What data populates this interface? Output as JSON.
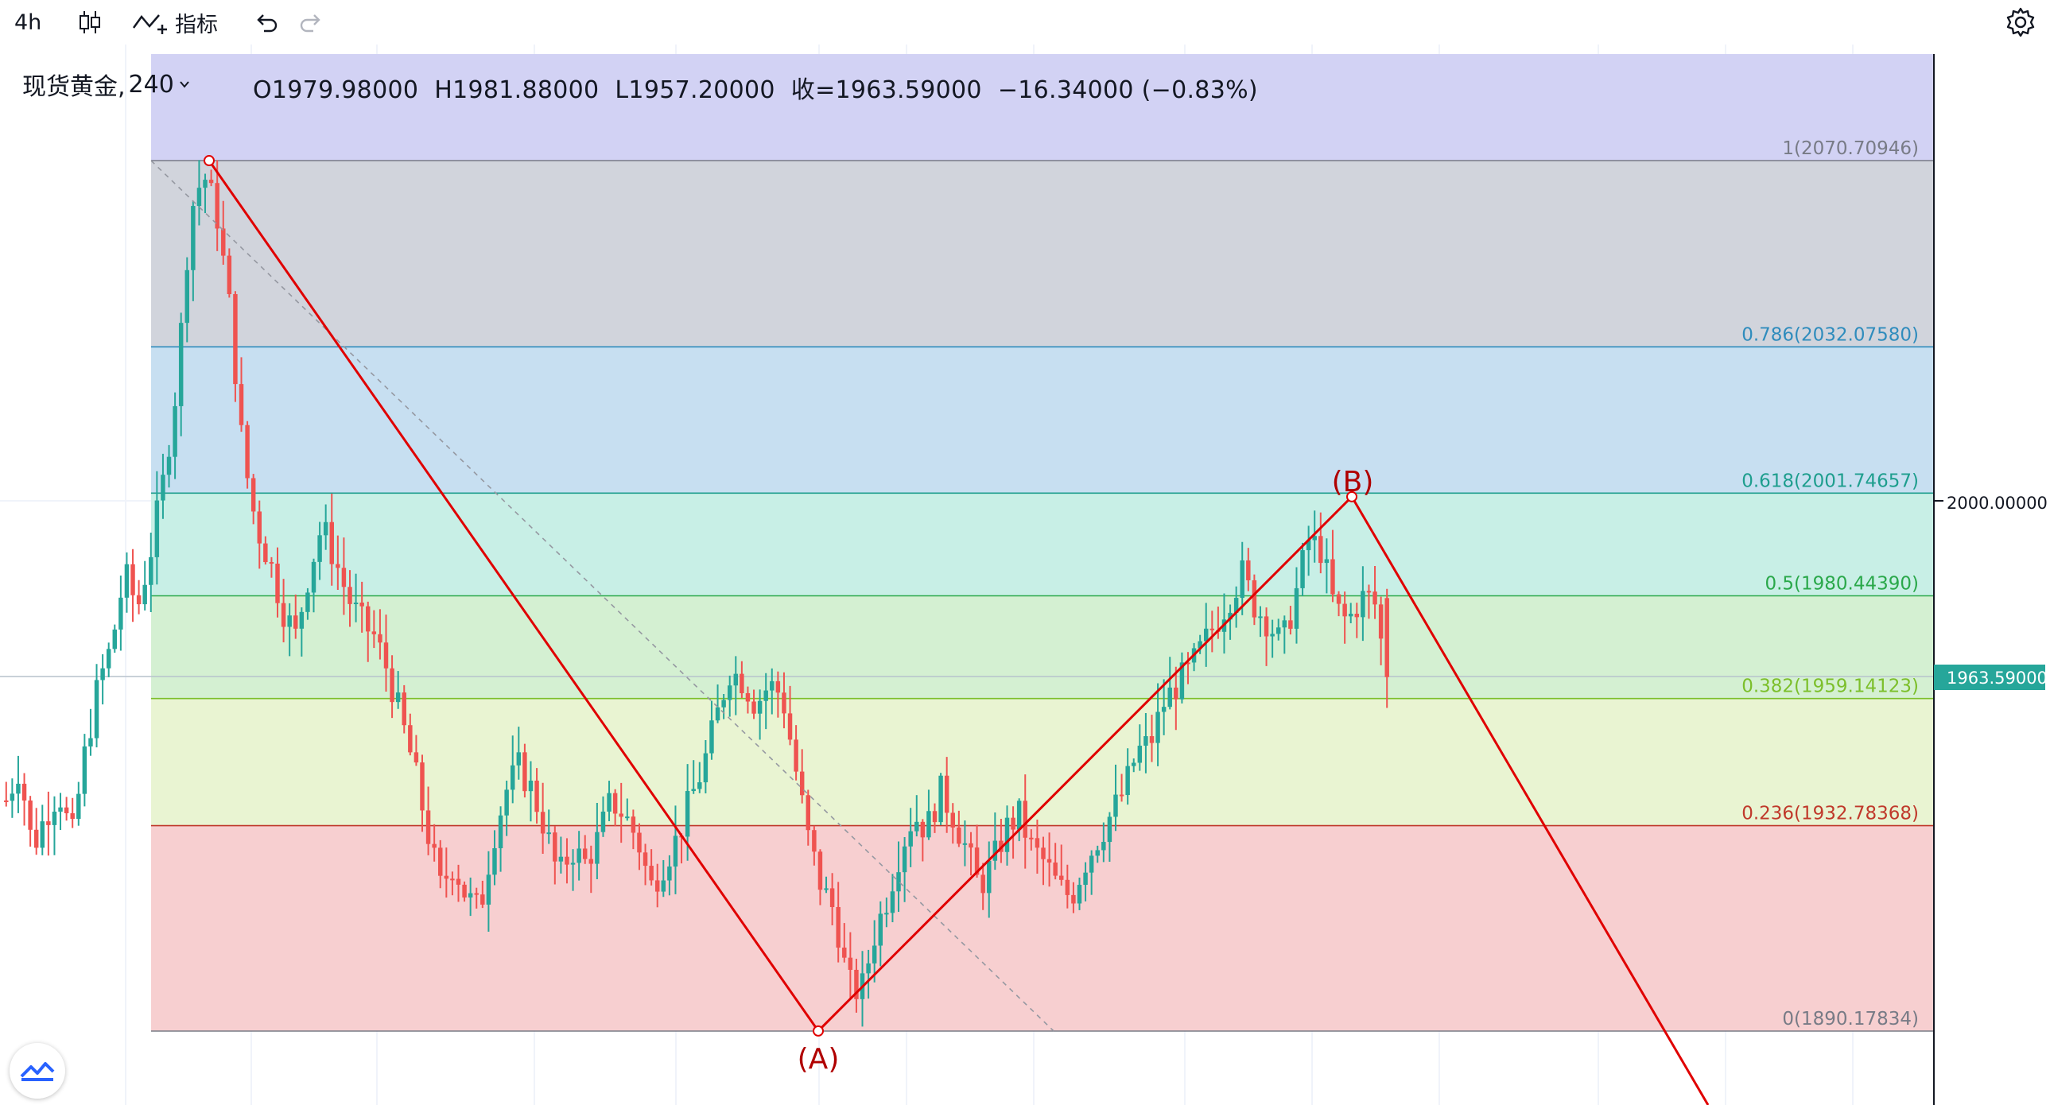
{
  "toolbar": {
    "interval": "4h",
    "indicators_label": "指标"
  },
  "legend": {
    "symbol": "现货黄金,",
    "interval": "240",
    "open": "O1979.98000",
    "high": "H1981.88000",
    "low": "L1957.20000",
    "close": "收=1963.59000",
    "change": "−16.34000 (−0.83%)"
  },
  "price_axis": {
    "tick": "2000.00000",
    "last_price": "1963.59000",
    "last_price_color": "#26a69a"
  },
  "colors": {
    "up": "#26a69a",
    "down": "#ef5350",
    "wave_line": "#e00000",
    "wave_label": "#b00000"
  },
  "chart_data": {
    "type": "candlestick",
    "instrument": "现货黄金",
    "timeframe": "240",
    "y_axis_ticks": [
      2000
    ],
    "last_price": 1963.59,
    "fibonacci": [
      {
        "ratio": "1",
        "price": 2070.70946,
        "label": "1(2070.70946)",
        "color": "#787b86",
        "fill": "#d1d4dc"
      },
      {
        "ratio": "0.786",
        "price": 2032.0758,
        "label": "0.786(2032.07580)",
        "color": "#2f8cbd",
        "fill": "#c7dff1"
      },
      {
        "ratio": "0.618",
        "price": 2001.74657,
        "label": "0.618(2001.74657)",
        "color": "#1e9e8e",
        "fill": "#c8efe6"
      },
      {
        "ratio": "0.5",
        "price": 1980.4439,
        "label": "0.5(1980.44390)",
        "color": "#2aa84a",
        "fill": "#d4f0d2"
      },
      {
        "ratio": "0.382",
        "price": 1959.14123,
        "label": "0.382(1959.14123)",
        "color": "#7cbf2b",
        "fill": "#e9f4d2"
      },
      {
        "ratio": "0.236",
        "price": 1932.78368,
        "label": "0.236(1932.78368)",
        "color": "#c0392b",
        "fill": "#f7cfd0"
      },
      {
        "ratio": "0",
        "price": 1890.17834,
        "label": "0(1890.17834)",
        "color": "#787b86",
        "fill": null
      }
    ],
    "zone_above_1_fill": "#d2d2f4",
    "wave_points": [
      {
        "label": "",
        "price": 2070.7
      },
      {
        "label": "(A)",
        "price": 1890.2
      },
      {
        "label": "(B)",
        "price": 2001.0
      }
    ],
    "last_candle": {
      "open": 1979.98,
      "high": 1981.88,
      "low": 1957.2,
      "close": 1963.59
    },
    "price_path": [
      1938,
      1945,
      1928,
      1935,
      1940,
      1930,
      1948,
      1962,
      1970,
      1985,
      1978,
      1990,
      2005,
      2025,
      2060,
      2068,
      2060,
      2040,
      2010,
      1995,
      1988,
      1978,
      1972,
      1985,
      1995,
      1988,
      1980,
      1975,
      1972,
      1965,
      1955,
      1945,
      1932,
      1920,
      1925,
      1918,
      1915,
      1930,
      1940,
      1945,
      1940,
      1932,
      1922,
      1928,
      1925,
      1930,
      1938,
      1935,
      1930,
      1920,
      1925,
      1930,
      1938,
      1945,
      1955,
      1965,
      1963,
      1958,
      1962,
      1960,
      1945,
      1930,
      1920,
      1915,
      1900,
      1898,
      1910,
      1918,
      1928,
      1935,
      1932,
      1940,
      1935,
      1928,
      1920,
      1925,
      1932,
      1935,
      1928,
      1925,
      1920,
      1918,
      1925,
      1930,
      1935,
      1940,
      1948,
      1950,
      1958,
      1962,
      1965,
      1970,
      1975,
      1980,
      1985,
      1978,
      1975,
      1970,
      1980,
      1992,
      1990,
      1978,
      1975,
      1980,
      1979.98,
      1963.59
    ]
  }
}
